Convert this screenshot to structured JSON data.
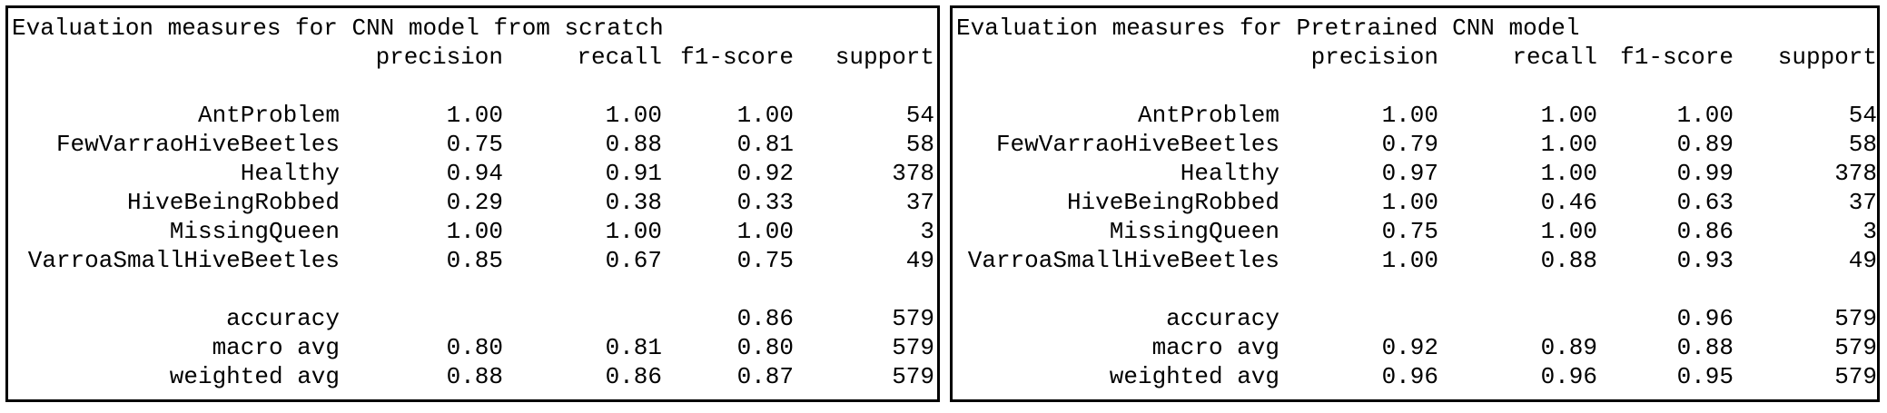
{
  "left": {
    "title": "Evaluation measures for CNN model from scratch",
    "headers": [
      "",
      "precision",
      "recall",
      "f1-score",
      "support"
    ],
    "rows": [
      [
        "AntProblem",
        "1.00",
        "1.00",
        "1.00",
        "54"
      ],
      [
        "FewVarraoHiveBeetles",
        "0.75",
        "0.88",
        "0.81",
        "58"
      ],
      [
        "Healthy",
        "0.94",
        "0.91",
        "0.92",
        "378"
      ],
      [
        "HiveBeingRobbed",
        "0.29",
        "0.38",
        "0.33",
        "37"
      ],
      [
        "MissingQueen",
        "1.00",
        "1.00",
        "1.00",
        "3"
      ],
      [
        "VarroaSmallHiveBeetles",
        "0.85",
        "0.67",
        "0.75",
        "49"
      ]
    ],
    "summary": [
      [
        "accuracy",
        "",
        "",
        "0.86",
        "579"
      ],
      [
        "macro avg",
        "0.80",
        "0.81",
        "0.80",
        "579"
      ],
      [
        "weighted avg",
        "0.88",
        "0.86",
        "0.87",
        "579"
      ]
    ]
  },
  "right": {
    "title": "Evaluation measures for Pretrained CNN model",
    "headers": [
      "",
      "precision",
      "recall",
      "f1-score",
      "support"
    ],
    "rows": [
      [
        "AntProblem",
        "1.00",
        "1.00",
        "1.00",
        "54"
      ],
      [
        "FewVarraoHiveBeetles",
        "0.79",
        "1.00",
        "0.89",
        "58"
      ],
      [
        "Healthy",
        "0.97",
        "1.00",
        "0.99",
        "378"
      ],
      [
        "HiveBeingRobbed",
        "1.00",
        "0.46",
        "0.63",
        "37"
      ],
      [
        "MissingQueen",
        "0.75",
        "1.00",
        "0.86",
        "3"
      ],
      [
        "VarroaSmallHiveBeetles",
        "1.00",
        "0.88",
        "0.93",
        "49"
      ]
    ],
    "summary": [
      [
        "accuracy",
        "",
        "",
        "0.96",
        "579"
      ],
      [
        "macro avg",
        "0.92",
        "0.89",
        "0.88",
        "579"
      ],
      [
        "weighted avg",
        "0.96",
        "0.96",
        "0.95",
        "579"
      ]
    ]
  }
}
